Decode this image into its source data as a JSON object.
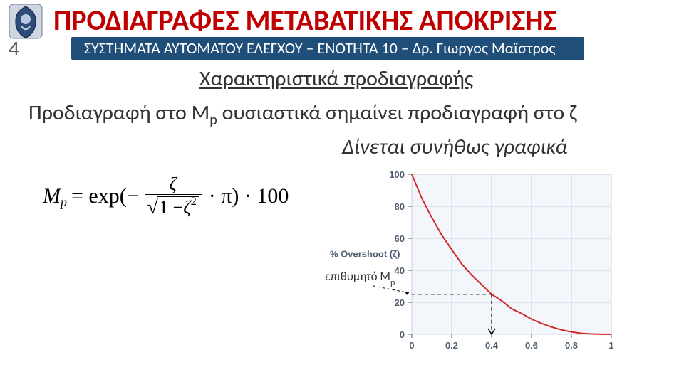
{
  "page_number": "4",
  "main_title": "ΠΡΟΔΙΑΓΡΑΦΕΣ ΜΕΤΑΒΑΤΙΚΗΣ ΑΠΟΚΡΙΣΗΣ",
  "subtitle": "ΣΥΣΤΗΜΑΤΑ ΑΥΤΟΜΑΤΟΥ ΕΛΕΓΧΟΥ – ΕΝΟΤΗΤΑ 10 – Δρ. Γιωργος Μαϊστρος",
  "section_heading": "Χαρακτηριστικά προδιαγραφής",
  "body_prefix": "Προδιαγραφή στο M",
  "body_sub": "p",
  "body_suffix": " ουσιαστικά σημαίνει προδιαγραφή στο ζ",
  "graph_caption": "Δίνεται συνήθως γραφικά",
  "formula": {
    "lhs_M": "M",
    "lhs_sub": "p",
    "eq": " = exp(−",
    "num": "ζ",
    "den_one": "1 − ",
    "den_z": "ζ",
    "den_sq": "2",
    "rhs": "· π) · 100"
  },
  "chart": {
    "type": "line",
    "ylabel": "% Overshoot (ζ)",
    "xlim": [
      0,
      1
    ],
    "ylim": [
      0,
      100
    ],
    "xticks": [
      0,
      0.2,
      0.4,
      0.6,
      0.8,
      1
    ],
    "yticks": [
      0,
      20,
      40,
      60,
      80,
      100
    ],
    "background_color": "#f3f6fa",
    "plot_border_color": "#8da3c0",
    "grid_color": "#c7d2e0",
    "tick_color": "#4a5a70",
    "label_color": "#4a5a70",
    "line_color": "#d22828",
    "line_width": 2,
    "tick_fontsize": 13,
    "label_fontsize": 13,
    "curve": [
      [
        0.0,
        100
      ],
      [
        0.05,
        85
      ],
      [
        0.1,
        73
      ],
      [
        0.15,
        62
      ],
      [
        0.2,
        53
      ],
      [
        0.25,
        44
      ],
      [
        0.3,
        37
      ],
      [
        0.35,
        31
      ],
      [
        0.4,
        25
      ],
      [
        0.45,
        21
      ],
      [
        0.5,
        16
      ],
      [
        0.55,
        13
      ],
      [
        0.6,
        9.5
      ],
      [
        0.65,
        6.8
      ],
      [
        0.7,
        4.6
      ],
      [
        0.75,
        2.8
      ],
      [
        0.8,
        1.5
      ],
      [
        0.85,
        0.6
      ],
      [
        0.9,
        0.2
      ],
      [
        0.95,
        0.04
      ],
      [
        1.0,
        0
      ]
    ],
    "annotation": {
      "text": "επιθυμητό M",
      "sub": "p",
      "marker_zeta": 0.4,
      "marker_overshoot": 25
    }
  },
  "subtitle_bar_bg": "#1f4e79",
  "title_color": "#c00000"
}
